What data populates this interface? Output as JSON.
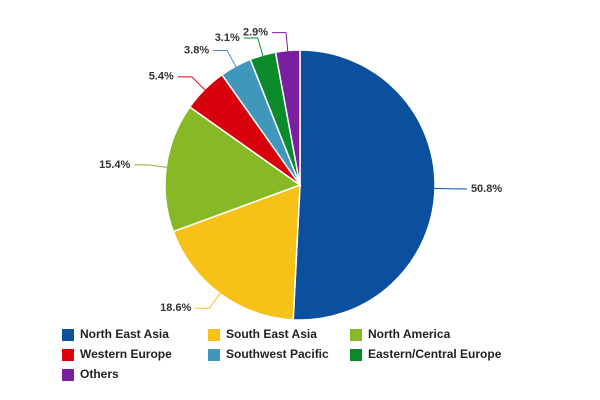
{
  "chart_data": {
    "type": "pie",
    "categories": [
      "North East Asia",
      "South East Asia",
      "North America",
      "Western Europe",
      "Southwest Pacific",
      "Eastern/Central Europe",
      "Others"
    ],
    "values": [
      50.8,
      18.6,
      15.4,
      5.4,
      3.8,
      3.1,
      2.9
    ],
    "value_labels": [
      "50.8%",
      "18.6%",
      "15.4%",
      "5.4%",
      "3.8%",
      "3.1%",
      "2.9%"
    ],
    "colors": [
      "#0a509f",
      "#f7c218",
      "#86b925",
      "#d9000d",
      "#3f97b9",
      "#0b8a2b",
      "#7b1fa2"
    ]
  }
}
